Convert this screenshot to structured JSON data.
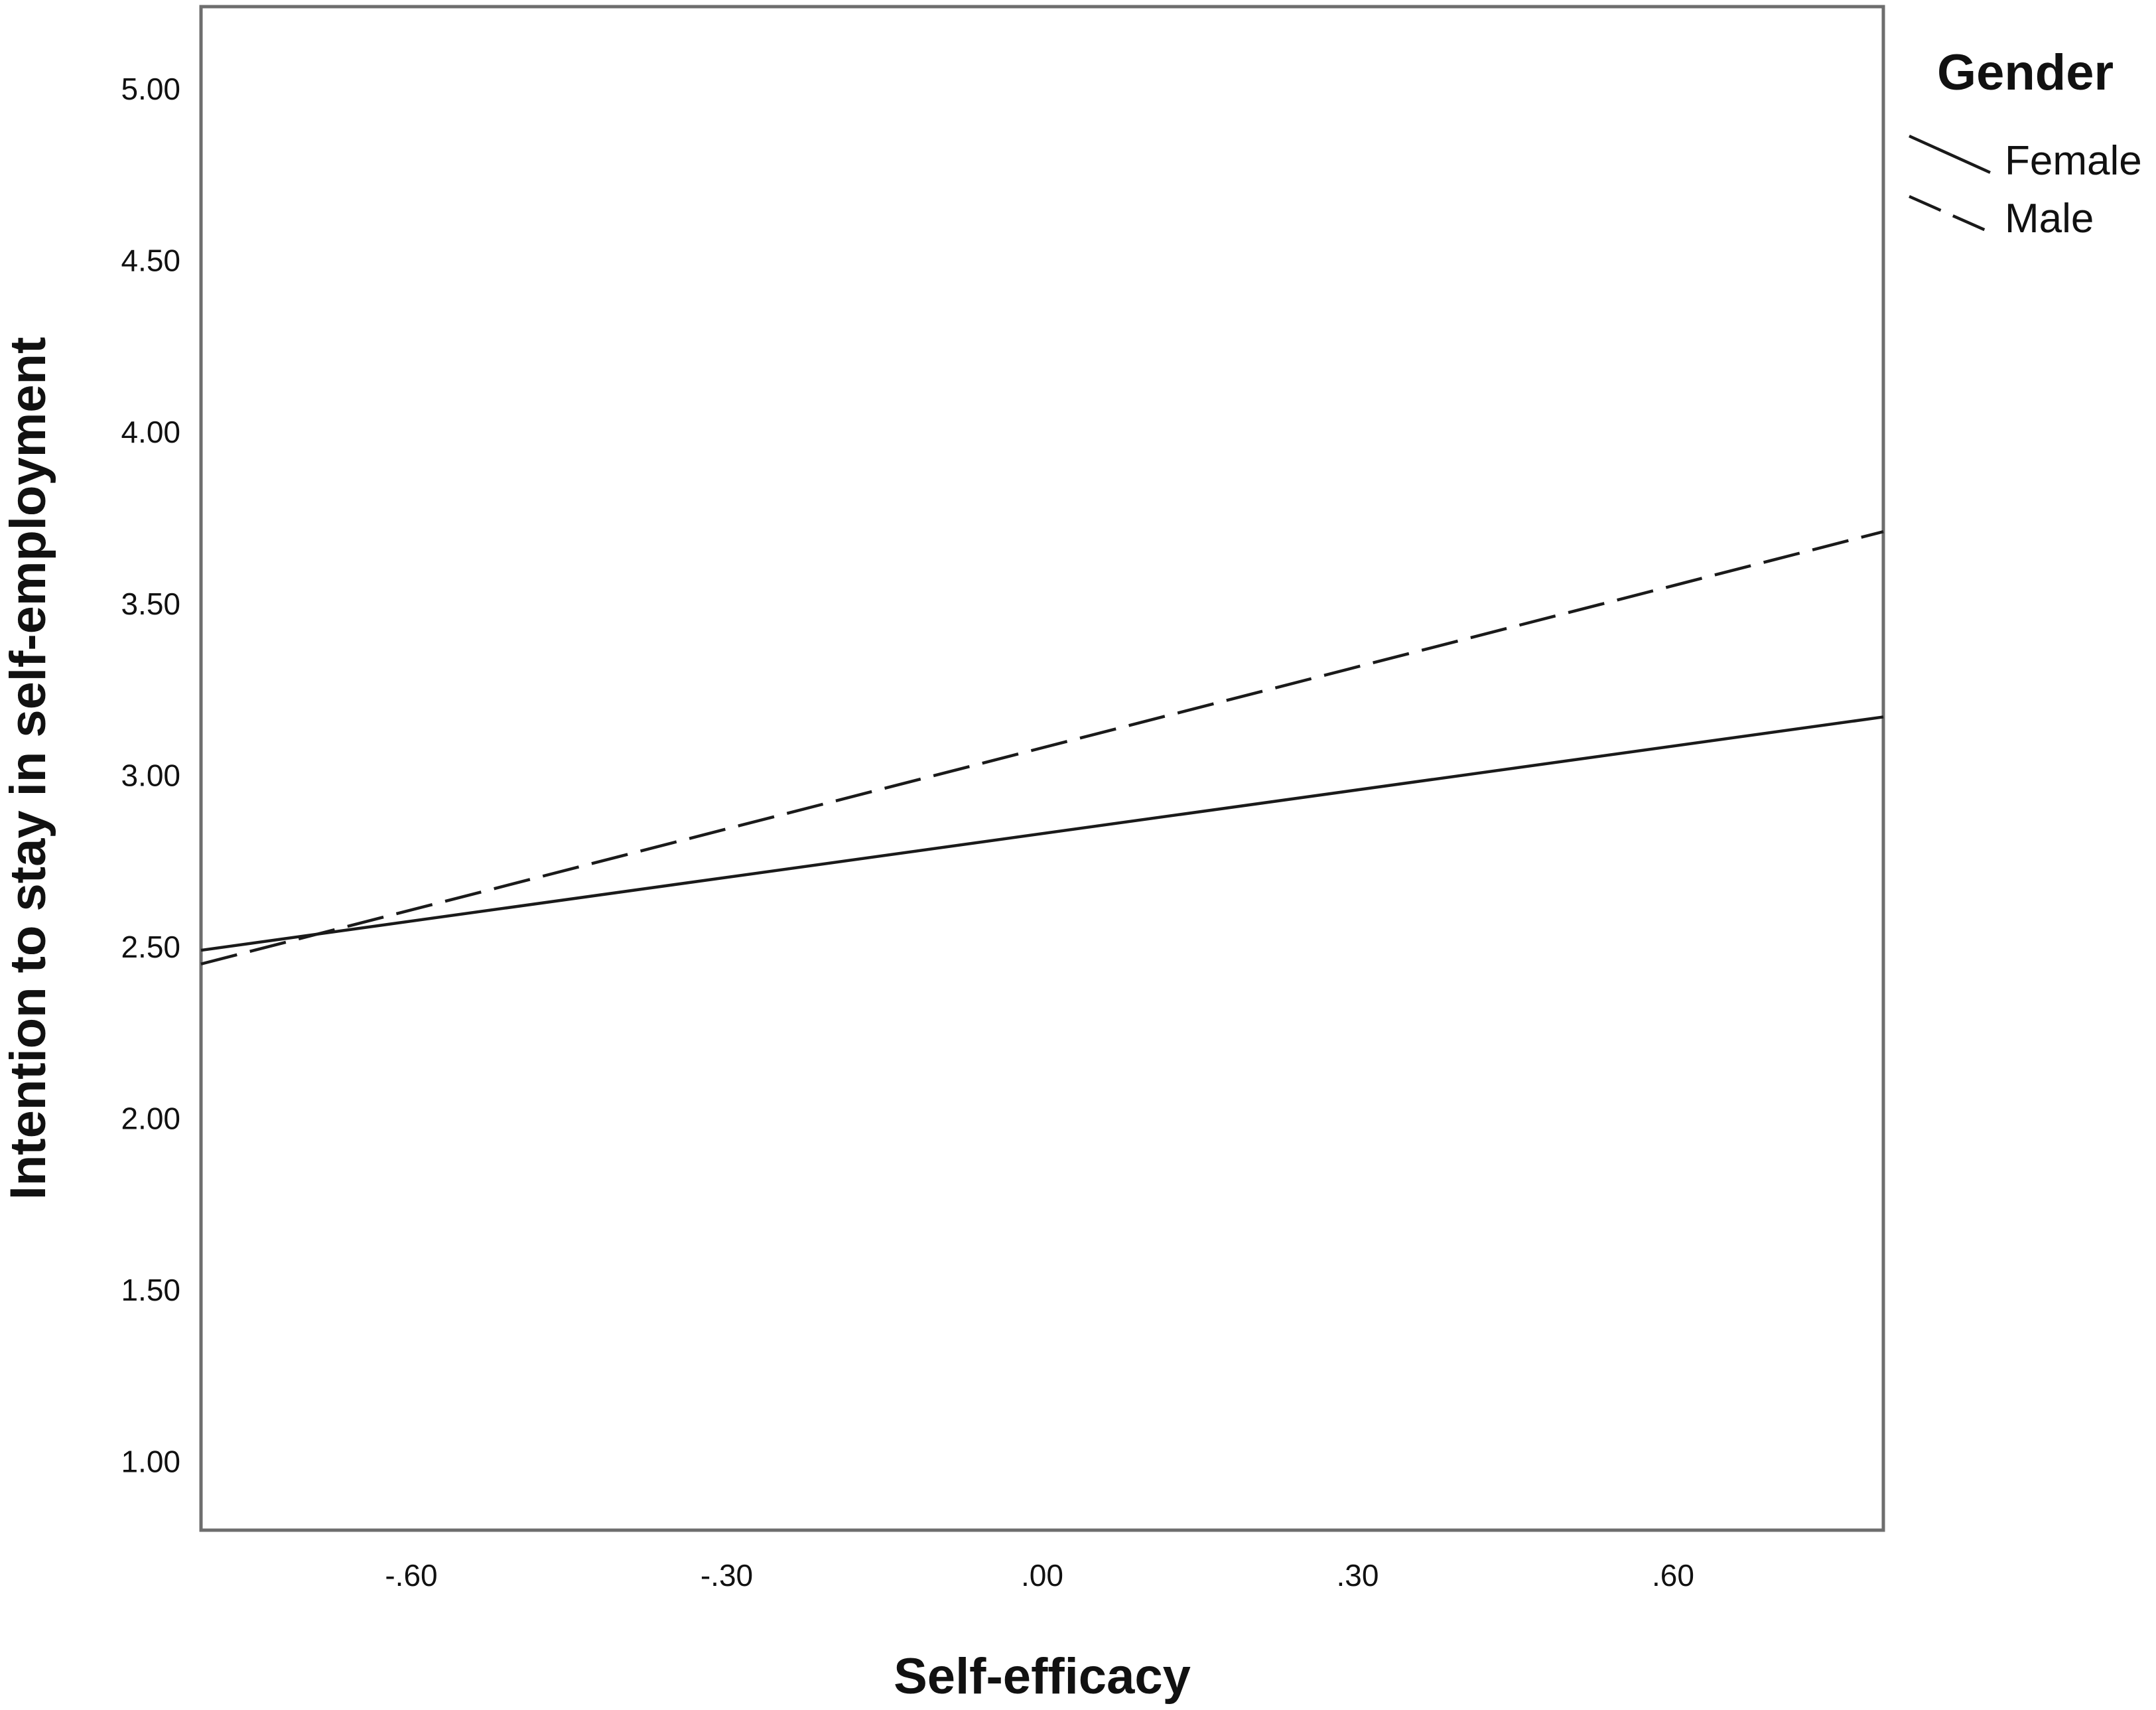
{
  "chart_data": {
    "type": "line",
    "title": "",
    "xlabel": "Self-efficacy",
    "ylabel": "Intention to stay in self-employment",
    "xlim": [
      -0.8,
      0.8
    ],
    "ylim": [
      0.8,
      5.24
    ],
    "x_ticks": [
      -0.6,
      -0.3,
      0.0,
      0.3,
      0.6
    ],
    "x_tick_labels": [
      "-.60",
      "-.30",
      ".00",
      ".30",
      ".60"
    ],
    "y_ticks": [
      1.0,
      1.5,
      2.0,
      2.5,
      3.0,
      3.5,
      4.0,
      4.5,
      5.0
    ],
    "y_tick_labels": [
      "1.00",
      "1.50",
      "2.00",
      "2.50",
      "3.00",
      "3.50",
      "4.00",
      "4.50",
      "5.00"
    ],
    "grid": false,
    "legend": {
      "title": "Gender",
      "placement": "top-right, outside plot"
    },
    "series": [
      {
        "name": "Female",
        "style": "solid",
        "x": [
          -0.8,
          0.8
        ],
        "y": [
          2.49,
          3.17
        ]
      },
      {
        "name": "Male",
        "style": "dashed",
        "x": [
          -0.8,
          0.8
        ],
        "y": [
          2.45,
          3.71
        ]
      }
    ],
    "colors": {
      "line": "#1a1a1a",
      "frame": "#6e6e6e",
      "background": "#ffffff"
    }
  }
}
